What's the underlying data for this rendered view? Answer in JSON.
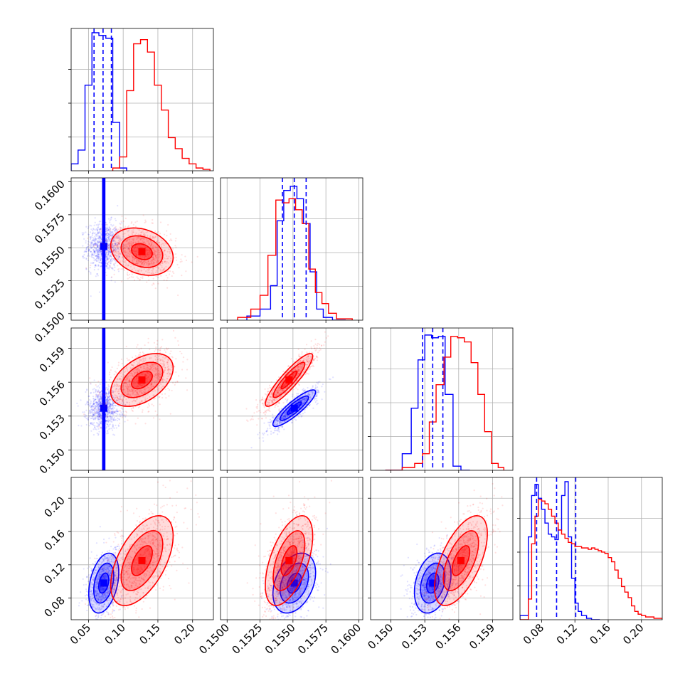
{
  "chart_data": {
    "type": "corner",
    "series": [
      {
        "color": "#0000ff",
        "mean": [
          0.072,
          0.1551,
          0.1537,
          0.098
        ],
        "sd": [
          0.012,
          0.0009,
          0.0009,
          0.02
        ],
        "corr": [
          [
            1,
            0,
            0,
            0.35
          ],
          [
            0,
            1,
            0.88,
            0.35
          ],
          [
            0,
            0.88,
            1,
            0.3
          ],
          [
            0.35,
            0.35,
            0.3,
            1
          ]
        ],
        "quantiles": [
          [
            0.058,
            0.071,
            0.083
          ],
          [
            0.1542,
            0.1551,
            0.156
          ],
          [
            0.1528,
            0.1537,
            0.1546
          ],
          [
            0.074,
            0.098,
            0.121
          ]
        ]
      },
      {
        "color": "#ff0000",
        "mean": [
          0.127,
          0.1547,
          0.1562,
          0.125
        ],
        "sd": [
          0.025,
          0.001,
          0.0013,
          0.03
        ],
        "corr": [
          [
            1,
            -0.25,
            0.45,
            0.55
          ],
          [
            -0.25,
            1,
            0.9,
            0.55
          ],
          [
            0.45,
            0.9,
            1,
            0.6
          ],
          [
            0.55,
            0.55,
            0.6,
            1
          ]
        ]
      }
    ],
    "axes": [
      {
        "range": [
          0.025,
          0.23
        ],
        "ticks": [
          0.05,
          0.1,
          0.15,
          0.2
        ],
        "ticklabels": [
          "0.05",
          "0.10",
          "0.15",
          "0.20"
        ]
      },
      {
        "range": [
          0.1495,
          0.1603
        ],
        "ticks": [
          0.15,
          0.1525,
          0.155,
          0.1575,
          0.16
        ],
        "ticklabels": [
          "0.1500",
          "0.1525",
          "0.1550",
          "0.1575",
          "0.1600"
        ]
      },
      {
        "range": [
          0.1482,
          0.1608
        ],
        "ticks": [
          0.15,
          0.153,
          0.156,
          0.159
        ],
        "ticklabels": [
          "0.150",
          "0.153",
          "0.156",
          "0.159"
        ]
      },
      {
        "range": [
          0.054,
          0.225
        ],
        "ticks": [
          0.08,
          0.12,
          0.16,
          0.2
        ],
        "ticklabels": [
          "0.08",
          "0.12",
          "0.16",
          "0.20"
        ]
      }
    ],
    "histograms": [
      {
        "series": 0,
        "bins": [
          0.025,
          0.035,
          0.045,
          0.055,
          0.065,
          0.075,
          0.085,
          0.095,
          0.105
        ],
        "counts": [
          0.05,
          0.15,
          0.62,
          1.0,
          0.98,
          0.96,
          0.35,
          0.02
        ]
      },
      {
        "series": 1,
        "bins": [
          0.085,
          0.095,
          0.105,
          0.115,
          0.125,
          0.135,
          0.145,
          0.155,
          0.165,
          0.175,
          0.185,
          0.195,
          0.205,
          0.215,
          0.225
        ],
        "counts": [
          0.02,
          0.1,
          0.58,
          0.92,
          0.95,
          0.86,
          0.62,
          0.44,
          0.24,
          0.16,
          0.09,
          0.05,
          0.02,
          0.01
        ]
      },
      {
        "series": 0,
        "bins": [
          0.1515,
          0.1525,
          0.1533,
          0.1538,
          0.1543,
          0.1548,
          0.1553,
          0.1558,
          0.1563,
          0.1568,
          0.1573,
          0.158,
          0.159
        ],
        "counts": [
          0.03,
          0.08,
          0.25,
          0.72,
          0.94,
          0.97,
          0.88,
          0.7,
          0.35,
          0.08,
          0.02,
          0.0
        ]
      },
      {
        "series": 1,
        "bins": [
          0.1508,
          0.1518,
          0.1525,
          0.1531,
          0.1537,
          0.1542,
          0.1547,
          0.1552,
          0.1557,
          0.1562,
          0.1567,
          0.1572,
          0.1577,
          0.1583,
          0.1595
        ],
        "counts": [
          0.02,
          0.08,
          0.18,
          0.47,
          0.87,
          0.85,
          0.88,
          0.8,
          0.7,
          0.37,
          0.2,
          0.12,
          0.05,
          0.01
        ]
      },
      {
        "series": 0,
        "bins": [
          0.1495,
          0.151,
          0.1518,
          0.1524,
          0.153,
          0.1536,
          0.1542,
          0.1548,
          0.1555,
          0.1562,
          0.157
        ],
        "counts": [
          0.0,
          0.12,
          0.45,
          0.8,
          0.98,
          0.96,
          0.97,
          0.55,
          0.03,
          0.0
        ]
      },
      {
        "series": 1,
        "bins": [
          0.1495,
          0.151,
          0.1521,
          0.1528,
          0.1534,
          0.154,
          0.1547,
          0.1553,
          0.1559,
          0.1565,
          0.1571,
          0.1577,
          0.1583,
          0.1589,
          0.1595,
          0.16
        ],
        "counts": [
          0.0,
          0.02,
          0.05,
          0.12,
          0.35,
          0.62,
          0.82,
          0.97,
          0.96,
          0.93,
          0.78,
          0.55,
          0.28,
          0.05,
          0.02
        ]
      },
      {
        "series": 0,
        "bins": [
          0.054,
          0.064,
          0.068,
          0.072,
          0.076,
          0.08,
          0.084,
          0.088,
          0.092,
          0.096,
          0.1,
          0.104,
          0.108,
          0.112,
          0.116,
          0.12,
          0.124,
          0.128,
          0.134,
          0.14,
          0.15
        ],
        "counts": [
          0.03,
          0.6,
          0.9,
          0.98,
          0.88,
          0.8,
          0.7,
          0.62,
          0.6,
          0.58,
          0.65,
          0.9,
          1.0,
          0.6,
          0.3,
          0.12,
          0.06,
          0.03,
          0.01,
          0.0
        ]
      },
      {
        "series": 1,
        "bins": [
          0.054,
          0.064,
          0.068,
          0.072,
          0.076,
          0.08,
          0.084,
          0.088,
          0.092,
          0.096,
          0.1,
          0.104,
          0.108,
          0.112,
          0.116,
          0.12,
          0.124,
          0.128,
          0.132,
          0.136,
          0.14,
          0.144,
          0.148,
          0.152,
          0.156,
          0.16,
          0.164,
          0.168,
          0.172,
          0.176,
          0.18,
          0.184,
          0.188,
          0.192,
          0.196,
          0.2,
          0.205,
          0.215,
          0.225
        ],
        "counts": [
          0.0,
          0.15,
          0.55,
          0.75,
          0.87,
          0.86,
          0.84,
          0.8,
          0.75,
          0.7,
          0.65,
          0.62,
          0.59,
          0.56,
          0.55,
          0.53,
          0.53,
          0.52,
          0.52,
          0.51,
          0.52,
          0.51,
          0.5,
          0.49,
          0.48,
          0.45,
          0.42,
          0.36,
          0.3,
          0.24,
          0.2,
          0.16,
          0.1,
          0.06,
          0.04,
          0.03,
          0.02,
          0.01
        ]
      }
    ],
    "histogram_quantiles": [
      {
        "axis": 0,
        "values": [
          0.058,
          0.071,
          0.083
        ]
      },
      {
        "axis": 1,
        "values": [
          0.1542,
          0.1551,
          0.156
        ]
      },
      {
        "axis": 2,
        "values": [
          0.1528,
          0.1537,
          0.1546
        ]
      },
      {
        "axis": 3,
        "values": [
          0.074,
          0.098,
          0.121
        ]
      }
    ]
  }
}
